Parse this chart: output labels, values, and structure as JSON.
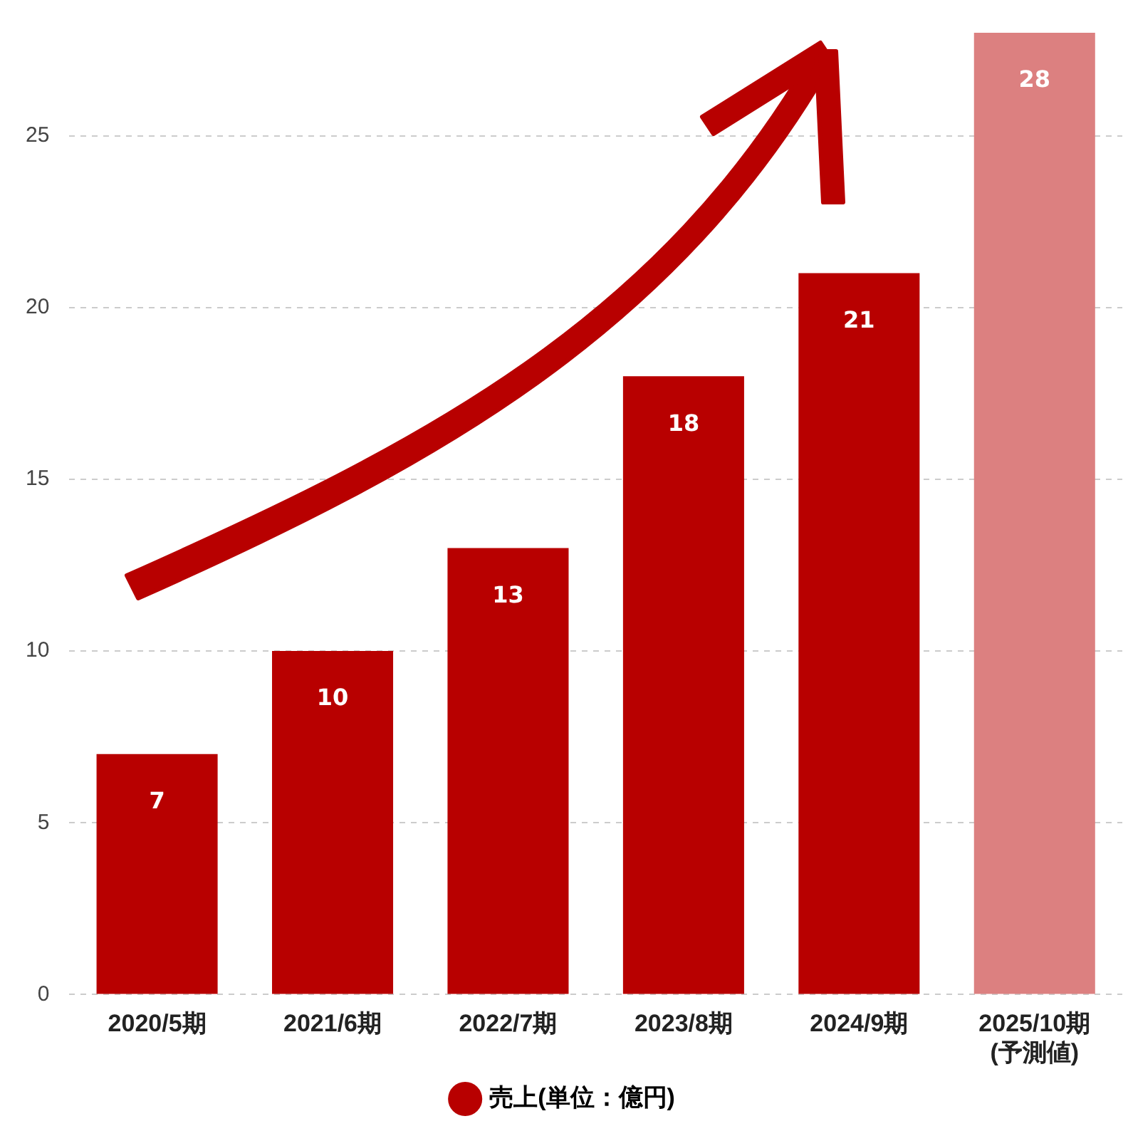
{
  "chart_data": {
    "type": "bar",
    "categories": [
      "2020/5期",
      "2021/6期",
      "2022/7期",
      "2023/8期",
      "2024/9期",
      "2025/10期\n(予測値)"
    ],
    "series": [
      {
        "name": "売上(単位：億円)",
        "color": "#b80000",
        "colors": [
          "#b80000",
          "#b80000",
          "#b80000",
          "#b80000",
          "#b80000",
          "#dc8080"
        ],
        "values": [
          7,
          10,
          13,
          18,
          21,
          28
        ]
      }
    ],
    "data_labels": true,
    "ylim": [
      0,
      28
    ],
    "yticks": [
      0,
      5,
      10,
      15,
      20,
      25
    ],
    "grid": "y",
    "legend": "bottom"
  }
}
